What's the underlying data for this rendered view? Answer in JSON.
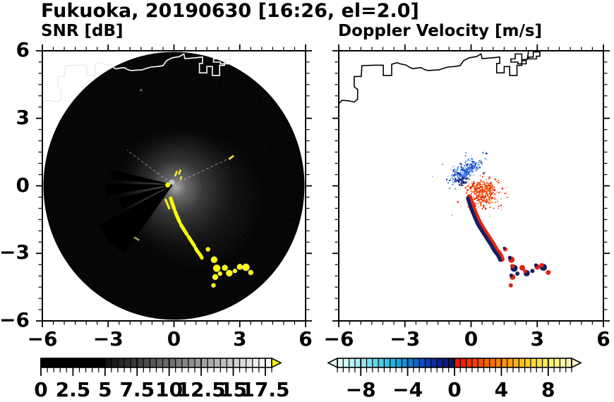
{
  "header": {
    "title": "Fukuoka, 20190630 [16:26, el=2.0]"
  },
  "axes": {
    "x_tick_labels": [
      {
        "value": -6,
        "label": "−6"
      },
      {
        "value": -3,
        "label": "−3"
      },
      {
        "value": 0,
        "label": "0"
      },
      {
        "value": 3,
        "label": "3"
      },
      {
        "value": 6,
        "label": "6"
      }
    ],
    "y_tick_labels": [
      {
        "value": 6,
        "label": "6"
      },
      {
        "value": 3,
        "label": "3"
      },
      {
        "value": 0,
        "label": "0"
      },
      {
        "value": -3,
        "label": "−3"
      },
      {
        "value": -6,
        "label": "−6"
      }
    ],
    "major_tick_values": [
      -6,
      -3,
      0,
      3,
      6
    ],
    "minor_tick_step": 0.5,
    "xlim": [
      -6,
      6
    ],
    "ylim": [
      -6,
      6
    ],
    "grid": false
  },
  "coastline": {
    "main": [
      [
        -6.1,
        3.55
      ],
      [
        -5.85,
        3.8
      ],
      [
        -5.55,
        3.78
      ],
      [
        -5.3,
        3.72
      ],
      [
        -5.15,
        3.85
      ],
      [
        -5.14,
        4.28
      ],
      [
        -5.3,
        4.4
      ],
      [
        -5.3,
        4.86
      ],
      [
        -4.98,
        4.86
      ],
      [
        -4.95,
        5.34
      ],
      [
        -4.4,
        5.36
      ],
      [
        -3.98,
        5.36
      ],
      [
        -3.98,
        4.9
      ],
      [
        -3.6,
        4.9
      ],
      [
        -3.6,
        5.4
      ],
      [
        -3.35,
        5.47
      ],
      [
        -3.22,
        5.42
      ],
      [
        -2.96,
        5.37
      ],
      [
        -2.78,
        5.26
      ],
      [
        -2.64,
        5.2
      ],
      [
        -2.42,
        5.24
      ],
      [
        -2.26,
        5.25
      ],
      [
        -2.1,
        5.16
      ],
      [
        -1.94,
        5.12
      ],
      [
        -1.7,
        5.14
      ],
      [
        -1.46,
        5.15
      ],
      [
        -1.25,
        5.22
      ],
      [
        -1.04,
        5.28
      ],
      [
        -0.75,
        5.3
      ],
      [
        -0.5,
        5.34
      ],
      [
        -0.34,
        5.56
      ],
      [
        -0.08,
        5.69
      ],
      [
        0.24,
        5.74
      ],
      [
        0.45,
        5.86
      ],
      [
        0.5,
        5.65
      ],
      [
        0.88,
        5.68
      ],
      [
        1.3,
        5.72
      ],
      [
        1.3,
        5.44
      ],
      [
        1.16,
        5.44
      ],
      [
        1.16,
        5.02
      ],
      [
        1.5,
        5.02
      ],
      [
        1.5,
        5.3
      ],
      [
        1.75,
        5.3
      ],
      [
        1.75,
        4.9
      ],
      [
        2.08,
        4.9
      ],
      [
        2.08,
        5.35
      ],
      [
        2.3,
        5.35
      ],
      [
        2.3,
        5.6
      ],
      [
        2.55,
        5.62
      ],
      [
        2.6,
        5.98
      ]
    ],
    "islands": [
      [
        [
          1.8,
          5.5
        ],
        [
          1.8,
          5.64
        ],
        [
          2.0,
          5.64
        ],
        [
          2.0,
          5.86
        ],
        [
          2.3,
          5.86
        ],
        [
          2.3,
          5.56
        ],
        [
          2.5,
          5.56
        ],
        [
          2.5,
          5.42
        ],
        [
          2.12,
          5.42
        ],
        [
          2.12,
          5.5
        ]
      ],
      [
        [
          2.6,
          5.64
        ],
        [
          2.6,
          5.72
        ],
        [
          2.82,
          5.72
        ],
        [
          2.82,
          5.95
        ],
        [
          3.12,
          5.95
        ],
        [
          3.12,
          5.76
        ],
        [
          2.96,
          5.76
        ],
        [
          2.96,
          5.64
        ]
      ]
    ]
  },
  "chart_data": [
    {
      "type": "heatmap",
      "title": "SNR [dB]",
      "xlabel": "",
      "ylabel": "",
      "xlim": [
        -6,
        6
      ],
      "ylim": [
        -6,
        6
      ],
      "coastline_color": "#ffffff",
      "scan_disc": {
        "center": [
          0,
          0
        ],
        "radius": 5.95,
        "background": "#050505"
      },
      "center_glow": {
        "center": [
          0.08,
          -0.05
        ],
        "radius": 2.7
      },
      "broad_haze": {
        "center": [
          0.9,
          -0.6
        ],
        "radius": 3.2
      },
      "core_spot": {
        "center": [
          -0.1,
          0.15
        ],
        "radius_px": 4
      },
      "beam_shadow_wedges": [
        [
          166,
          175,
          2.8
        ],
        [
          179,
          189,
          3.0
        ],
        [
          194,
          206,
          2.5
        ],
        [
          209,
          235,
          3.8
        ]
      ],
      "ray_lines": [
        [
          143,
          2.6
        ],
        [
          25,
          2.9
        ]
      ],
      "high_snr_color": "#ffff00",
      "high_snr_streak": [
        [
          -0.15,
          -0.55
        ],
        [
          -0.02,
          -0.95
        ],
        [
          0.12,
          -1.3
        ],
        [
          0.3,
          -1.7
        ],
        [
          0.52,
          -2.05
        ],
        [
          0.72,
          -2.35
        ],
        [
          0.9,
          -2.62
        ],
        [
          1.05,
          -2.88
        ],
        [
          1.22,
          -3.1
        ],
        [
          1.32,
          -3.3
        ]
      ],
      "side_dash": [
        [
          -0.38,
          -0.62
        ],
        [
          -0.22,
          -1.0
        ]
      ],
      "high_snr_blobs": [
        [
          1.55,
          -2.82,
          3
        ],
        [
          1.83,
          -3.28,
          4.5
        ],
        [
          1.95,
          -3.66,
          5
        ],
        [
          1.88,
          -4.05,
          4
        ],
        [
          1.8,
          -4.42,
          3
        ],
        [
          2.32,
          -3.64,
          4
        ],
        [
          2.52,
          -3.88,
          4.5
        ],
        [
          2.78,
          -3.78,
          3
        ],
        [
          3.0,
          -3.6,
          4
        ],
        [
          3.28,
          -3.62,
          5
        ],
        [
          3.5,
          -3.85,
          3.5
        ],
        [
          2.1,
          -3.9,
          3
        ]
      ],
      "center_marks": [
        [
          0.05,
          0.42,
          0.14,
          0.66
        ],
        [
          0.22,
          0.5,
          0.3,
          0.72
        ],
        [
          0.3,
          0.28,
          0.34,
          0.42
        ],
        [
          2.5,
          1.18,
          2.72,
          1.34
        ]
      ],
      "dim_dash": [
        [
          -1.82,
          -2.28
        ],
        [
          -1.58,
          -2.42
        ]
      ],
      "center_blob": [
        -0.28,
        0.04
      ],
      "faint_dot": [
        -1.5,
        4.25
      ],
      "colorbar": {
        "min": 0,
        "max": 18,
        "segment_step": 0.5,
        "tick_values": [
          0,
          2.5,
          5,
          7.5,
          10,
          12.5,
          15,
          17.5
        ],
        "tick_labels": [
          "0",
          "2.5",
          "5",
          "7.5",
          "10",
          "12.5",
          "15",
          "17.5"
        ],
        "over_color": "#ffff00",
        "segments": [
          "#000000",
          "#000000",
          "#000000",
          "#000000",
          "#000000",
          "#000000",
          "#000000",
          "#000000",
          "#000000",
          "#000000",
          "#141414",
          "#1d1d1d",
          "#272727",
          "#303030",
          "#3a3a3a",
          "#434343",
          "#4d4d4d",
          "#565656",
          "#606060",
          "#696969",
          "#727272",
          "#7c7c7c",
          "#858585",
          "#8f8f8f",
          "#989898",
          "#a1a1a1",
          "#ababab",
          "#b4b4b4",
          "#bebebe",
          "#c7c7c7",
          "#d0d0d0",
          "#dadada",
          "#e3e3e3",
          "#ededed",
          "#f6f6f6",
          "#ffffff"
        ]
      }
    },
    {
      "type": "scatter",
      "title": "Doppler Velocity [m/s]",
      "xlabel": "",
      "ylabel": "",
      "xlim": [
        -6,
        6
      ],
      "ylim": [
        -6,
        6
      ],
      "coastline_color": "#000000",
      "clusters": [
        {
          "name": "toward-radar-blue",
          "center": [
            -0.25,
            0.68
          ],
          "sx": 0.4,
          "sy": 0.17,
          "rot": 35,
          "n": 240,
          "seed": 7,
          "dot": [
            1,
            2.6
          ],
          "colors": [
            "#2b62dd",
            "#3d7de8",
            "#1f4ed2",
            "#5fa2ee",
            "#15329e"
          ]
        },
        {
          "name": "navy-specks",
          "center": [
            -0.45,
            0.15
          ],
          "sx": 0.15,
          "sy": 0.08,
          "rot": 20,
          "n": 28,
          "seed": 13,
          "dot": [
            1.4,
            3
          ],
          "colors": [
            "#131d63",
            "#1a2a80"
          ]
        },
        {
          "name": "away-radar-red",
          "center": [
            0.55,
            -0.25
          ],
          "sx": 0.34,
          "sy": 0.3,
          "rot": -30,
          "n": 300,
          "seed": 21,
          "dot": [
            1,
            2.6
          ],
          "colors": [
            "#ee3505",
            "#f45c12",
            "#fa741f",
            "#df2408"
          ]
        },
        {
          "name": "red-sparse",
          "center": [
            0.6,
            -0.5
          ],
          "sx": 0.6,
          "sy": 0.45,
          "rot": 0,
          "n": 40,
          "seed": 29,
          "dot": [
            1,
            2
          ],
          "colors": [
            "#ee3505",
            "#e02513"
          ]
        },
        {
          "name": "blue-sparse",
          "center": [
            -0.3,
            0.8
          ],
          "sx": 0.55,
          "sy": 0.3,
          "rot": 35,
          "n": 30,
          "seed": 31,
          "dot": [
            1,
            1.8
          ],
          "colors": [
            "#2b62dd",
            "#3d7de8"
          ]
        }
      ],
      "isolated_points": [
        [
          -0.6,
          -0.72,
          "#e02513"
        ],
        [
          1.42,
          -0.12,
          "#e02513"
        ],
        [
          0.66,
          -1.02,
          "#e02513"
        ]
      ],
      "streak": {
        "points": [
          [
            -0.15,
            -0.55
          ],
          [
            -0.02,
            -0.95
          ],
          [
            0.12,
            -1.3
          ],
          [
            0.3,
            -1.7
          ],
          [
            0.52,
            -2.05
          ],
          [
            0.72,
            -2.35
          ],
          [
            0.9,
            -2.62
          ],
          [
            1.05,
            -2.88
          ],
          [
            1.22,
            -3.1
          ],
          [
            1.32,
            -3.3
          ]
        ],
        "core_color": "#131d63",
        "fringe_color": "#e02513"
      },
      "blobs": [
        [
          1.55,
          -2.82,
          3,
          "#e02513",
          "#131d63"
        ],
        [
          1.83,
          -3.28,
          4.5,
          "#e02513",
          "#131d63"
        ],
        [
          1.95,
          -3.66,
          5,
          "#131d63",
          "#e02513"
        ],
        [
          1.88,
          -4.05,
          4,
          "#e02513",
          "#131d63"
        ],
        [
          1.8,
          -4.42,
          3,
          "#e02513",
          null
        ],
        [
          2.32,
          -3.64,
          4,
          "#e02513",
          null
        ],
        [
          2.52,
          -3.88,
          4.5,
          "#131d63",
          "#e02513"
        ],
        [
          2.78,
          -3.78,
          3,
          "#131d63",
          null
        ],
        [
          3.0,
          -3.6,
          4,
          "#e02513",
          "#131d63"
        ],
        [
          3.28,
          -3.62,
          5,
          "#131d63",
          "#e02513"
        ],
        [
          3.5,
          -3.85,
          3.5,
          "#e02513",
          null
        ],
        [
          2.1,
          -3.9,
          3,
          "#131d63",
          null
        ]
      ],
      "colorbar": {
        "min": -10,
        "max": 10,
        "segment_step": 0.5,
        "tick_values": [
          -8,
          -4,
          0,
          4,
          8
        ],
        "tick_labels": [
          "−8",
          "−4",
          "0",
          "4",
          "8"
        ],
        "under_color": "#eafcfc",
        "over_color": "#f7f2c5",
        "segments": [
          "#dffbfb",
          "#cdf7f8",
          "#bbf2f5",
          "#a7ecf2",
          "#92e5ef",
          "#7cddec",
          "#66d4e9",
          "#50cae6",
          "#3abfe2",
          "#28b2de",
          "#1ba4d9",
          "#1591d3",
          "#127bcc",
          "#0f64c5",
          "#0c4ebd",
          "#0a3bb4",
          "#0a2da4",
          "#0b2290",
          "#0c1a78",
          "#0d145e",
          "#ee1407",
          "#ee2206",
          "#ef3106",
          "#f04106",
          "#f25106",
          "#f36106",
          "#f57106",
          "#f68108",
          "#f8910a",
          "#f9a10e",
          "#fab114",
          "#fbc01c",
          "#fcce27",
          "#fdda35",
          "#fde346",
          "#fdea5a",
          "#fcef71",
          "#fbf28a",
          "#faf3a2",
          "#f8f3b8"
        ]
      }
    }
  ]
}
